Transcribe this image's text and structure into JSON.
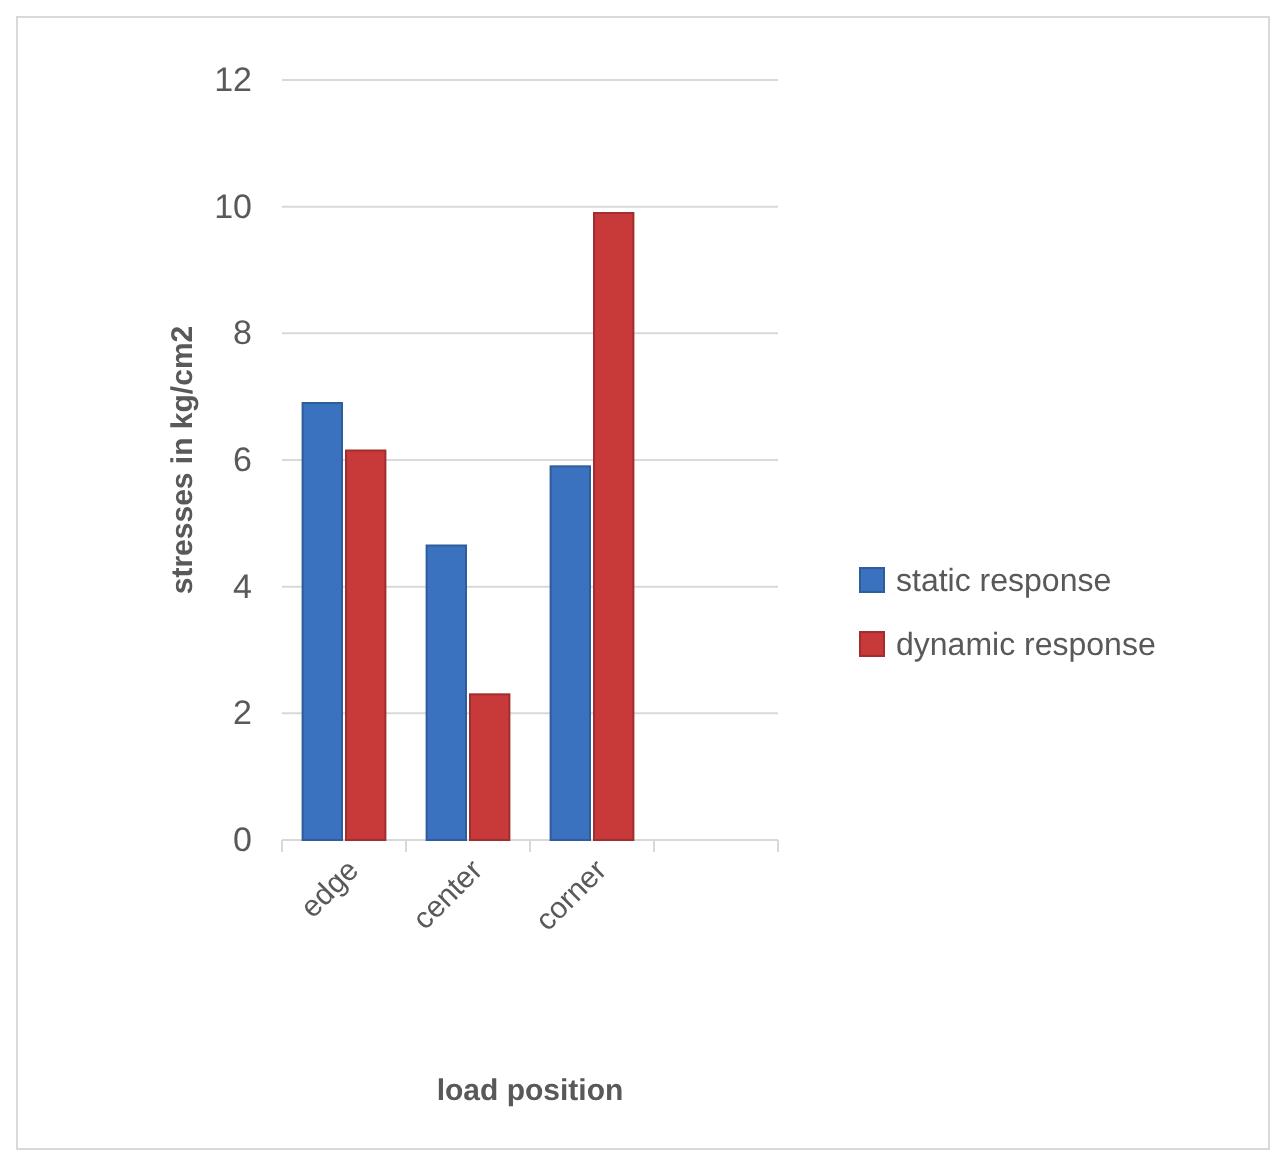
{
  "chart_data": {
    "type": "bar",
    "xlabel": "load position",
    "ylabel": "stresses in kg/cm2",
    "categories": [
      "edge",
      "center",
      "corner",
      null
    ],
    "series": [
      {
        "name": "static response",
        "color": "#3a72c0",
        "values": [
          6.9,
          4.65,
          5.9,
          null
        ]
      },
      {
        "name": "dynamic response",
        "color": "#c8393a",
        "values": [
          6.15,
          2.3,
          9.9,
          null
        ]
      }
    ],
    "ylim": [
      0,
      12
    ],
    "yticks": [
      0,
      2,
      4,
      6,
      8,
      10,
      12
    ],
    "grid": "y",
    "legend": "right"
  }
}
